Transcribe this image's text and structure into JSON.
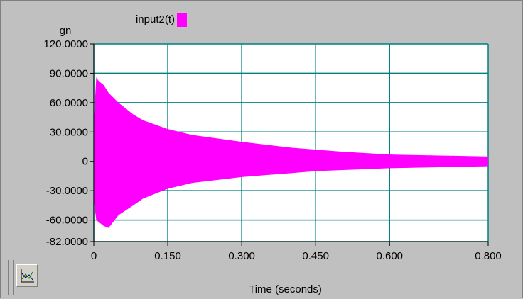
{
  "chart_data": {
    "type": "line",
    "xlabel": "Time (seconds)",
    "ylabel": "gn",
    "xlim": [
      0,
      0.8
    ],
    "ylim": [
      -82,
      120
    ],
    "xticks": [
      {
        "value": 0,
        "label": "0"
      },
      {
        "value": 0.15,
        "label": "0.150"
      },
      {
        "value": 0.3,
        "label": "0.300"
      },
      {
        "value": 0.45,
        "label": "0.450"
      },
      {
        "value": 0.6,
        "label": "0.600"
      },
      {
        "value": 0.8,
        "label": "0.800"
      }
    ],
    "yticks": [
      {
        "value": 120,
        "label": "120.0000"
      },
      {
        "value": 90,
        "label": "90.0000"
      },
      {
        "value": 60,
        "label": "60.0000"
      },
      {
        "value": 30,
        "label": "30.0000"
      },
      {
        "value": 0,
        "label": "0"
      },
      {
        "value": -30,
        "label": "-30.0000"
      },
      {
        "value": -60,
        "label": "-60.0000"
      },
      {
        "value": -82,
        "label": "-82.0000"
      }
    ],
    "grid": true,
    "legend_position": "top-left",
    "series": [
      {
        "name": "input2(t)",
        "color": "#ff00ff",
        "envelope": {
          "x": [
            0,
            0.005,
            0.01,
            0.02,
            0.03,
            0.05,
            0.08,
            0.1,
            0.15,
            0.2,
            0.3,
            0.4,
            0.45,
            0.5,
            0.6,
            0.7,
            0.8
          ],
          "upper": [
            40,
            86,
            82,
            78,
            70,
            60,
            48,
            42,
            33,
            27,
            20,
            14,
            12,
            10,
            7,
            6,
            5
          ],
          "lower": [
            -40,
            -60,
            -62,
            -66,
            -68,
            -55,
            -45,
            -38,
            -28,
            -22,
            -16,
            -12,
            -10,
            -9,
            -7,
            -6,
            -5
          ]
        }
      }
    ]
  },
  "toolbar": {
    "graph_icon": "graph-properties-icon"
  }
}
